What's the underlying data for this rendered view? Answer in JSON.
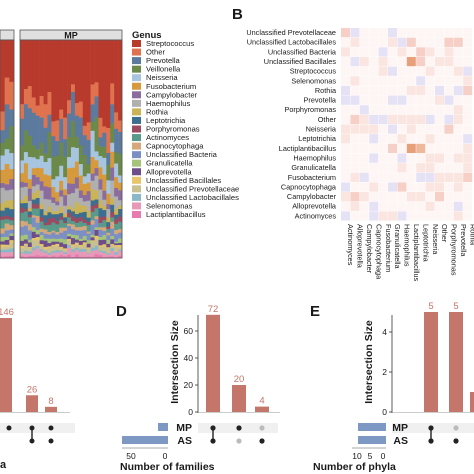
{
  "panels": {
    "b": "B",
    "d": "D",
    "e": "E"
  },
  "panel_a": {
    "strip_label": "MP",
    "legend_title": "Genus"
  },
  "panel_c": {
    "xlabel_fragment": "a"
  },
  "chart_data": [
    {
      "type": "bar",
      "name": "genus-composition-stacked",
      "stacked": true,
      "facet": "MP",
      "legend_title": "Genus",
      "legend_placement": "right",
      "genera": [
        "Streptococcus",
        "Other",
        "Prevotella",
        "Veillonella",
        "Neisseria",
        "Fusobacterium",
        "Campylobacter",
        "Haemophilus",
        "Rothia",
        "Leptotrichia",
        "Porphyromonas",
        "Actinomyces",
        "Capnocytophaga",
        "Unclassified Bacteria",
        "Granulicatella",
        "Alloprevotella",
        "Unclassified Bacillales",
        "Unclassified Prevotellaceae",
        "Unclassified Lactobacillales",
        "Selenomonas",
        "Lactiplantibacillus"
      ],
      "colors": [
        "#b83a2c",
        "#e0734f",
        "#5b7a9e",
        "#6b8a4a",
        "#a8c5e0",
        "#d69a3c",
        "#8a6d9e",
        "#b0b0b0",
        "#c9b458",
        "#3c6e8f",
        "#9c4a60",
        "#5a9a8a",
        "#d4a87a",
        "#7b8fc4",
        "#a3c47a",
        "#6e4e8a",
        "#e8c46a",
        "#c9c090",
        "#8ab8c9",
        "#e79ab8",
        "#e87ab0"
      ]
    },
    {
      "type": "heatmap",
      "name": "genus-correlation-heatmap",
      "rows": [
        "Unclassified Prevotellaceae",
        "Unclassified Lactobacillales",
        "Unclassified Bacteria",
        "Unclassified Bacillales",
        "Streptococcus",
        "Selenomonas",
        "Rothia",
        "Prevotella",
        "Porphyromonas",
        "Other",
        "Neisseria",
        "Leptotrichia",
        "Lactiplantibacillus",
        "Haemophilus",
        "Granulicatella",
        "Fusobacterium",
        "Capnocytophaga",
        "Campylobacter",
        "Alloprevotella",
        "Actinomyces"
      ],
      "columns": [
        "Actinomyces",
        "Alloprevotella",
        "Campylobacter",
        "Capnocytophaga",
        "Fusobacterium",
        "Granulicatella",
        "Haemophilus",
        "Lactiplantibacillus",
        "Leptotrichia",
        "Neisseria",
        "Other",
        "Porphyromonas",
        "Prevotella",
        "Rothia"
      ]
    },
    {
      "type": "bar",
      "name": "upset-genus-partial",
      "values": [
        146,
        26,
        8
      ],
      "labels": [
        "146",
        "26",
        "8"
      ],
      "ylim": [
        0,
        160
      ]
    },
    {
      "type": "bar",
      "name": "upset-families",
      "ylabel": "Intersection Size",
      "values": [
        72,
        20,
        4
      ],
      "labels": [
        "72",
        "20",
        "4"
      ],
      "ylim": [
        0,
        80
      ],
      "yticks": [
        0,
        20,
        40,
        60
      ],
      "sets": [
        "MP",
        "AS"
      ],
      "set_size_label": "Number of families",
      "set_size_ticks": [
        "50",
        "0"
      ]
    },
    {
      "type": "bar",
      "name": "upset-phyla",
      "ylabel": "Intersection Size",
      "values": [
        5,
        5,
        1
      ],
      "labels": [
        "5",
        "5",
        ""
      ],
      "ylim": [
        0,
        5.5
      ],
      "yticks": [
        0,
        2,
        4
      ],
      "sets": [
        "MP",
        "AS"
      ],
      "set_size_label": "Number of phyla",
      "set_size_ticks": [
        "10",
        "5",
        "0"
      ]
    }
  ]
}
